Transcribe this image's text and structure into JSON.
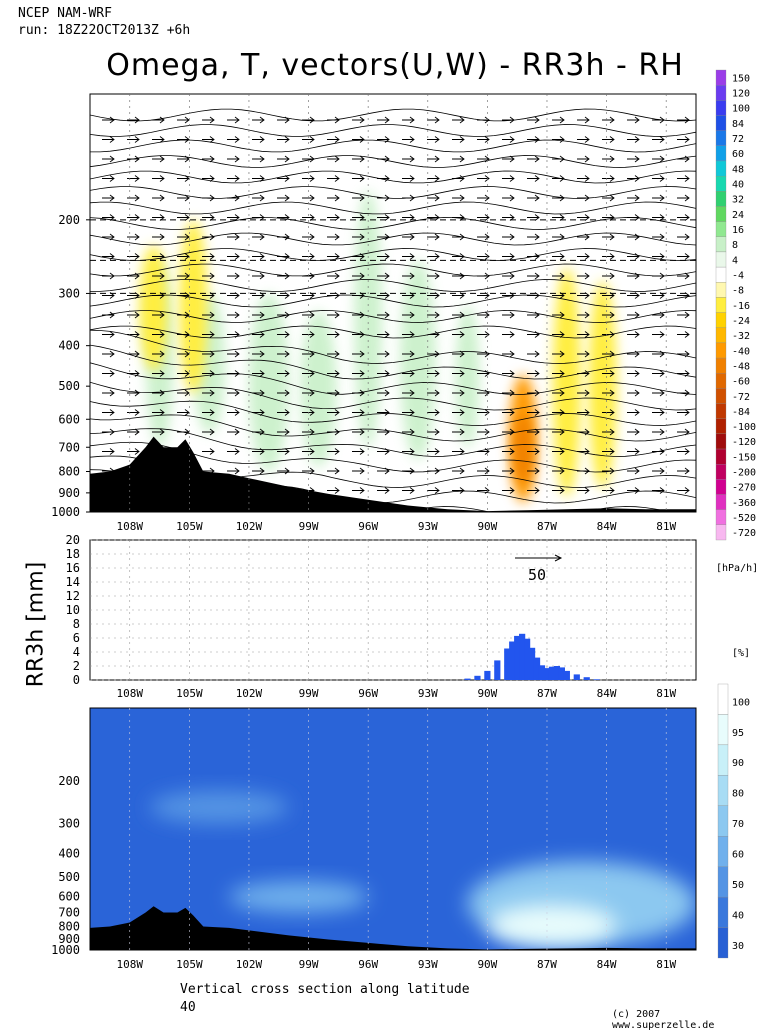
{
  "header": {
    "model": "NCEP NAM-WRF",
    "run": "run: 18Z22OCT2013Z +6h"
  },
  "title": "Omega, T, vectors(U,W) - RR3h - RH",
  "footer": {
    "caption": "Vertical cross section along latitude",
    "latitude": "40",
    "copyright": "(c) 2007 www.superzelle.de"
  },
  "colors": {
    "terrain": "#000000",
    "rr_bar": "#2255ee",
    "rh_base": "#2a64d8"
  },
  "chart_data": [
    {
      "type": "heatmap",
      "title": "Omega, T, vectors(U,W)",
      "x_ticks": [
        "108W",
        "105W",
        "102W",
        "99W",
        "96W",
        "93W",
        "90W",
        "87W",
        "84W",
        "81W"
      ],
      "x_tick_values": [
        -108,
        -105,
        -102,
        -99,
        -96,
        -93,
        -90,
        -87,
        -84,
        -81
      ],
      "xlim": [
        -110,
        -79.5
      ],
      "y_ticks": [
        "200",
        "300",
        "400",
        "500",
        "600",
        "700",
        "800",
        "900",
        "1000"
      ],
      "y_tick_values": [
        200,
        300,
        400,
        500,
        600,
        700,
        800,
        900,
        1000
      ],
      "ylim": [
        1000,
        100
      ],
      "y_scale": "log",
      "unit": "[hPa/h]",
      "vector_scale_label": "50",
      "colorbar_labels": [
        "150",
        "120",
        "100",
        "84",
        "72",
        "60",
        "48",
        "40",
        "32",
        "24",
        "16",
        "8",
        "4",
        "-4",
        "-8",
        "-16",
        "-24",
        "-32",
        "-40",
        "-48",
        "-60",
        "-72",
        "-84",
        "-100",
        "-120",
        "-150",
        "-200",
        "-270",
        "-360",
        "-520",
        "-720"
      ],
      "colorbar_colors": [
        "#9b3de8",
        "#6a3cf0",
        "#3a3cf0",
        "#1e50e6",
        "#1a78e8",
        "#10a0e8",
        "#10c8d8",
        "#18d8b0",
        "#30d070",
        "#60d860",
        "#90e890",
        "#c8f0c8",
        "#eaf8ea",
        "#ffffff",
        "#fff8b0",
        "#ffee40",
        "#ffd200",
        "#ffb800",
        "#ff9a00",
        "#f08000",
        "#e06800",
        "#d05000",
        "#c03800",
        "#b02000",
        "#a00c0c",
        "#b00030",
        "#c00060",
        "#d00090",
        "#e030c0",
        "#f070e0",
        "#f8b8f0"
      ],
      "rising_motion_cells": [
        {
          "lon": -106.8,
          "p_top": 230,
          "p_bot": 460,
          "omega": -16
        },
        {
          "lon": -104.8,
          "p_top": 200,
          "p_bot": 520,
          "omega": -16
        },
        {
          "lon": -88.2,
          "p_top": 470,
          "p_bot": 950,
          "omega": -40
        },
        {
          "lon": -86.0,
          "p_top": 260,
          "p_bot": 920,
          "omega": -16
        },
        {
          "lon": -84.2,
          "p_top": 280,
          "p_bot": 880,
          "omega": -16
        }
      ],
      "terrain_pressure": [
        {
          "lon": -110.0,
          "p": 810
        },
        {
          "lon": -109.0,
          "p": 800
        },
        {
          "lon": -108.0,
          "p": 770
        },
        {
          "lon": -107.2,
          "p": 700
        },
        {
          "lon": -106.8,
          "p": 660
        },
        {
          "lon": -106.3,
          "p": 700
        },
        {
          "lon": -105.6,
          "p": 700
        },
        {
          "lon": -105.2,
          "p": 670
        },
        {
          "lon": -104.8,
          "p": 720
        },
        {
          "lon": -104.3,
          "p": 800
        },
        {
          "lon": -103.0,
          "p": 810
        },
        {
          "lon": -102.0,
          "p": 830
        },
        {
          "lon": -100.0,
          "p": 870
        },
        {
          "lon": -98.0,
          "p": 905
        },
        {
          "lon": -96.0,
          "p": 935
        },
        {
          "lon": -94.0,
          "p": 965
        },
        {
          "lon": -92.0,
          "p": 985
        },
        {
          "lon": -90.0,
          "p": 995
        },
        {
          "lon": -88.0,
          "p": 990
        },
        {
          "lon": -86.0,
          "p": 985
        },
        {
          "lon": -84.0,
          "p": 980
        },
        {
          "lon": -82.0,
          "p": 985
        },
        {
          "lon": -79.5,
          "p": 985
        }
      ]
    },
    {
      "type": "bar",
      "title": "",
      "ylabel": "RR3h [mm]",
      "y_ticks": [
        "0",
        "2",
        "4",
        "6",
        "8",
        "10",
        "12",
        "14",
        "16",
        "18",
        "20"
      ],
      "ylim": [
        0,
        20
      ],
      "x_ticks": [
        "108W",
        "105W",
        "102W",
        "99W",
        "96W",
        "93W",
        "90W",
        "87W",
        "84W",
        "81W"
      ],
      "x": [
        -91.0,
        -90.5,
        -90.0,
        -89.5,
        -89.0,
        -88.75,
        -88.5,
        -88.25,
        -88.0,
        -87.75,
        -87.5,
        -87.25,
        -87.0,
        -86.75,
        -86.5,
        -86.25,
        -86.0,
        -85.5,
        -85.0,
        -84.5
      ],
      "values": [
        0.2,
        0.6,
        1.3,
        2.8,
        4.5,
        5.5,
        6.3,
        6.6,
        5.9,
        4.6,
        3.2,
        2.1,
        1.7,
        1.9,
        2.0,
        1.8,
        1.3,
        0.8,
        0.4,
        0.1
      ]
    },
    {
      "type": "heatmap",
      "title": "",
      "unit": "[%]",
      "x_ticks": [
        "108W",
        "105W",
        "102W",
        "99W",
        "96W",
        "93W",
        "90W",
        "87W",
        "84W",
        "81W"
      ],
      "y_ticks": [
        "200",
        "300",
        "400",
        "500",
        "600",
        "700",
        "800",
        "900",
        "1000"
      ],
      "colorbar_labels": [
        "100",
        "95",
        "90",
        "80",
        "70",
        "60",
        "50",
        "40",
        "30"
      ],
      "colorbar_colors": [
        "#ffffff",
        "#e8fcfc",
        "#c8f0f8",
        "#a8dcf4",
        "#8cc8f0",
        "#70b0ec",
        "#5494e4",
        "#3a78dc",
        "#2860d4"
      ],
      "moist_regions": [
        {
          "lon_from": -90.0,
          "lon_to": -83.5,
          "p_top": 650,
          "p_bot": 960,
          "rh": 95
        },
        {
          "lon_from": -91.0,
          "lon_to": -79.5,
          "p_top": 430,
          "p_bot": 960,
          "rh": 70
        },
        {
          "lon_from": -103.0,
          "lon_to": -96.0,
          "p_top": 520,
          "p_bot": 700,
          "rh": 60
        },
        {
          "lon_from": -107.0,
          "lon_to": -100.0,
          "p_top": 220,
          "p_bot": 300,
          "rh": 50
        }
      ]
    }
  ]
}
